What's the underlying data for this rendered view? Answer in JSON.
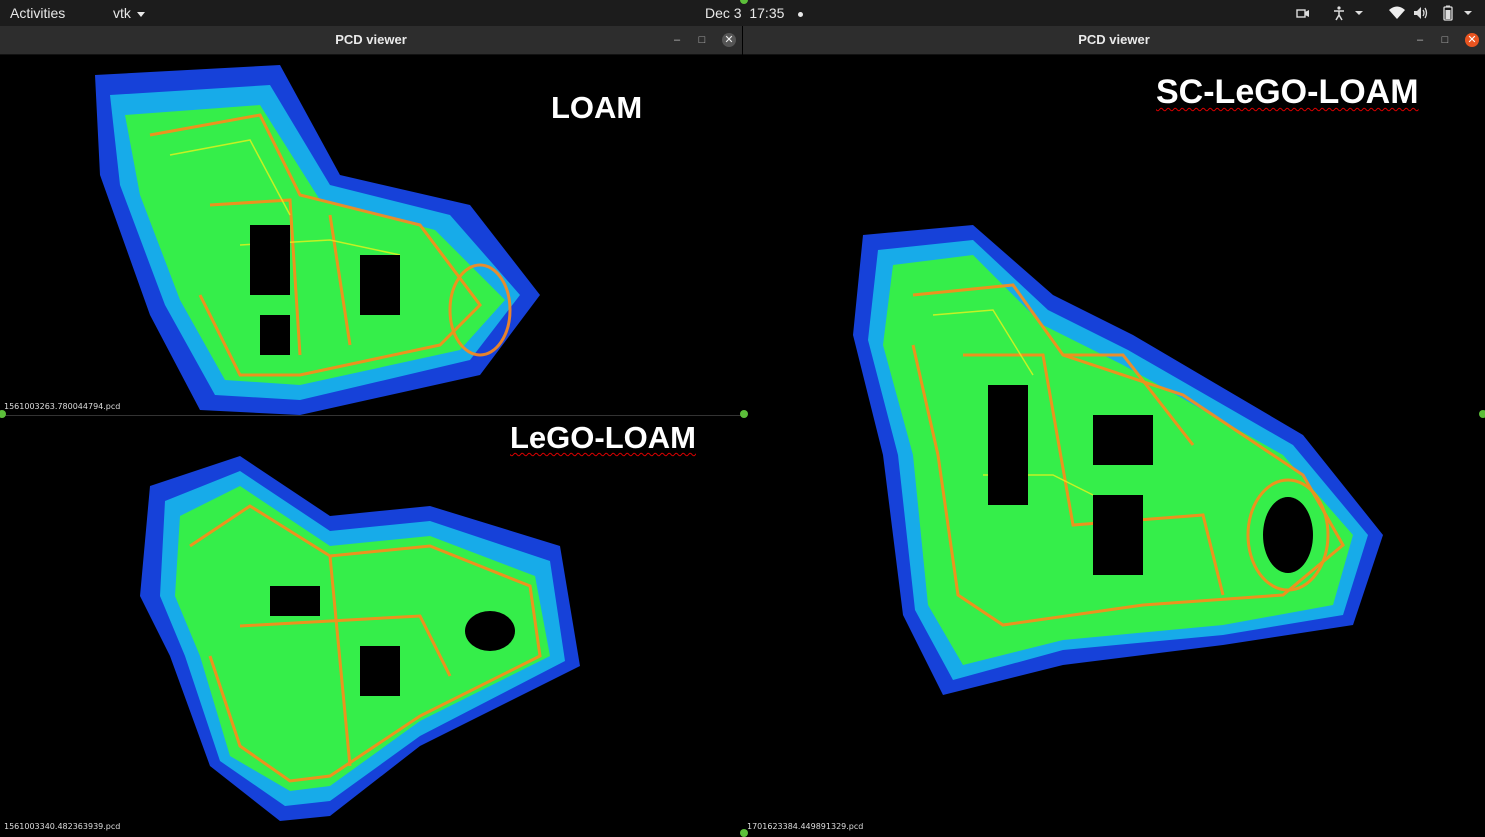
{
  "topbar": {
    "activities": "Activities",
    "app_menu": "vtk",
    "date": "Dec 3",
    "time": "17:35",
    "tray_icons": [
      "screencast-icon",
      "accessibility-icon",
      "wifi-icon",
      "volume-icon",
      "battery-icon",
      "system-menu-icon"
    ]
  },
  "windows": [
    {
      "title": "PCD viewer",
      "viewports": [
        {
          "label": "LOAM",
          "filename": "1561003263.780044794.pcd"
        },
        {
          "label": "LeGO-LOAM",
          "filename": "1561003340.482363939.pcd"
        }
      ]
    },
    {
      "title": "PCD viewer",
      "viewports": [
        {
          "label": "SC-LeGO-LOAM",
          "filename": "1701623384.449891329.pcd"
        }
      ]
    }
  ],
  "colors": {
    "topbar_bg": "#1c1c1c",
    "titlebar_bg": "#2d2d2d",
    "close_active": "#e95420",
    "cloud_blue": "#1a4cff",
    "cloud_cyan": "#18d8f0",
    "cloud_green": "#3dff22",
    "cloud_yellow": "#e8f21a",
    "cloud_orange": "#ff8a1a"
  }
}
